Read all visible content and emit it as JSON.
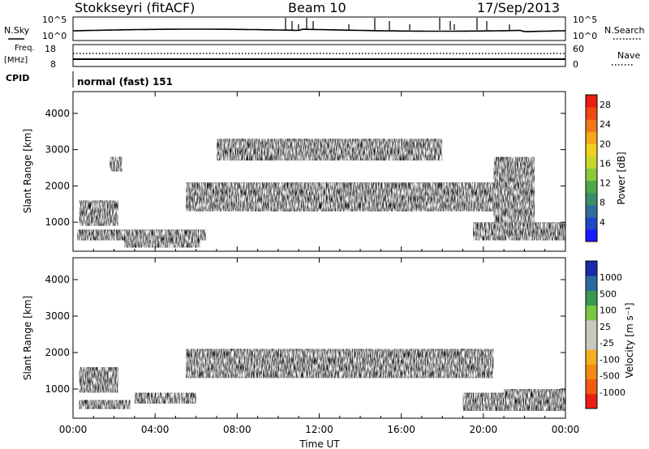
{
  "header": {
    "station": "Stokkseyri (fitACF)",
    "beam": "Beam 10",
    "date": "17/Sep/2013"
  },
  "strip_panels": {
    "nsky_label": "N.Sky",
    "nsky_tick_top": "10^5",
    "nsky_tick_bottom": "10^0",
    "nsearch_label": "N.Search",
    "freq_label": "Freq.",
    "freq_unit": "[MHz]",
    "freq_tick_top": "18",
    "freq_tick_bottom": "8",
    "nave_label": "Nave",
    "nave_tick_top": "60",
    "nave_tick_bottom": "0",
    "cpid_label": "CPID",
    "cpid_value": "normal (fast) 151"
  },
  "colors": {
    "power": [
      "#1a1aff",
      "#1f48c8",
      "#2f6e9a",
      "#3a8f6a",
      "#4ca84a",
      "#8bc83a",
      "#c6d82a",
      "#f0d020",
      "#f4a81a",
      "#f07818",
      "#ee4a14",
      "#e81e10"
    ],
    "velocity": [
      "#e81e10",
      "#f05a10",
      "#f28a14",
      "#f4b020",
      "#c8c8c0",
      "#c8c8c0",
      "#7ac840",
      "#3a9a50",
      "#2a6aa0",
      "#1a2aa8"
    ]
  },
  "chart_data": [
    {
      "type": "heatmap",
      "name": "power",
      "ylabel": "Slant Range [km]",
      "yticks": [
        "1000",
        "2000",
        "3000",
        "4000"
      ],
      "ylim": [
        200,
        4600
      ],
      "xlim": [
        0,
        24
      ],
      "colorbar_label": "Power [dB]",
      "colorbar_ticks": [
        "4",
        "8",
        "12",
        "16",
        "20",
        "24",
        "28"
      ],
      "colorbar_range": [
        0,
        30
      ],
      "regions": [
        {
          "x0": 0.3,
          "x1": 2.2,
          "y0": 900,
          "y1": 1600,
          "value": 12
        },
        {
          "x0": 1.8,
          "x1": 2.4,
          "y0": 2400,
          "y1": 2800,
          "value": 10
        },
        {
          "x0": 0.2,
          "x1": 6.5,
          "y0": 500,
          "y1": 800,
          "value": 22
        },
        {
          "x0": 2.5,
          "x1": 6.2,
          "y0": 300,
          "y1": 500,
          "value": 18
        },
        {
          "x0": 5.5,
          "x1": 20.5,
          "y0": 1300,
          "y1": 2100,
          "value": 12
        },
        {
          "x0": 9.0,
          "x1": 16.5,
          "y0": 1550,
          "y1": 1950,
          "value": 24
        },
        {
          "x0": 7.0,
          "x1": 18.0,
          "y0": 2700,
          "y1": 3300,
          "value": 6
        },
        {
          "x0": 19.5,
          "x1": 24.0,
          "y0": 500,
          "y1": 1000,
          "value": 26
        },
        {
          "x0": 20.5,
          "x1": 22.5,
          "y0": 900,
          "y1": 2800,
          "value": 10
        }
      ]
    },
    {
      "type": "heatmap",
      "name": "velocity",
      "ylabel": "Slant Range [km]",
      "yticks": [
        "1000",
        "2000",
        "3000",
        "4000"
      ],
      "ylim": [
        200,
        4600
      ],
      "xlim": [
        0,
        24
      ],
      "xticks": [
        "00:00",
        "04:00",
        "08:00",
        "12:00",
        "16:00",
        "20:00",
        "00:00"
      ],
      "xlabel": "Time UT",
      "colorbar_label": "Velocity [m s⁻¹]",
      "colorbar_ticks": [
        "-1000",
        "-500",
        "-100",
        "-25",
        "25",
        "100",
        "500",
        "1000"
      ],
      "colorbar_range": [
        -1000,
        1000
      ],
      "regions": [
        {
          "x0": 0.3,
          "x1": 2.2,
          "y0": 900,
          "y1": 1600,
          "value": 500
        },
        {
          "x0": 0.3,
          "x1": 2.8,
          "y0": 450,
          "y1": 700,
          "value": -200
        },
        {
          "x0": 3.0,
          "x1": 6.0,
          "y0": 600,
          "y1": 900,
          "value": 0
        },
        {
          "x0": 5.5,
          "x1": 20.5,
          "y0": 1300,
          "y1": 2100,
          "value": 0
        },
        {
          "x0": 19.0,
          "x1": 21.0,
          "y0": 400,
          "y1": 900,
          "value": -300
        },
        {
          "x0": 21.0,
          "x1": 24.0,
          "y0": 400,
          "y1": 1000,
          "value": 200
        }
      ]
    }
  ]
}
